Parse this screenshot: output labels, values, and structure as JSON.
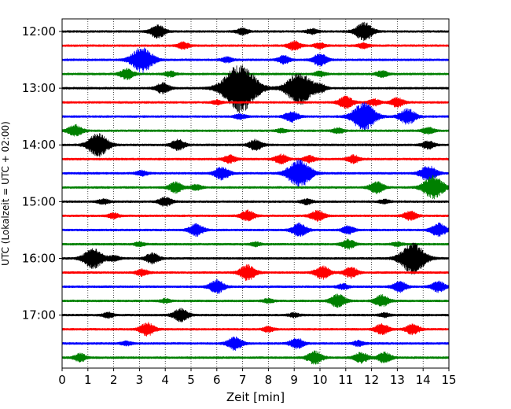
{
  "chart_data": {
    "type": "line",
    "subtype": "helicorder",
    "xlabel": "Zeit  [min]",
    "ylabel": "UTC (Lokalzeit = UTC + 02:00)",
    "xlim": [
      0,
      15
    ],
    "x_ticks": [
      "0",
      "1",
      "2",
      "3",
      "4",
      "5",
      "6",
      "7",
      "8",
      "9",
      "10",
      "11",
      "12",
      "13",
      "14",
      "15"
    ],
    "y_tick_labels": [
      "12:00",
      "13:00",
      "14:00",
      "15:00",
      "16:00",
      "17:00"
    ],
    "grid": "vertical-dotted",
    "trace_colors": [
      "#000000",
      "#ff0000",
      "#0000ff",
      "#008000"
    ],
    "traces": [
      {
        "start": "12:00",
        "color": "#000000",
        "bursts": [
          [
            3.7,
            0.5
          ],
          [
            11.7,
            0.7
          ],
          [
            7.0,
            0.25
          ],
          [
            9.7,
            0.2
          ]
        ]
      },
      {
        "start": "12:15",
        "color": "#ff0000",
        "bursts": [
          [
            4.7,
            0.25
          ],
          [
            9.0,
            0.35
          ],
          [
            11.7,
            0.2
          ],
          [
            10.0,
            0.2
          ]
        ]
      },
      {
        "start": "12:30",
        "color": "#0000ff",
        "bursts": [
          [
            3.1,
            1.0
          ],
          [
            10.0,
            0.45
          ],
          [
            8.6,
            0.3
          ],
          [
            6.4,
            0.2
          ]
        ]
      },
      {
        "start": "12:45",
        "color": "#008000",
        "bursts": [
          [
            2.5,
            0.4
          ],
          [
            12.4,
            0.25
          ],
          [
            4.2,
            0.2
          ],
          [
            10.0,
            0.2
          ]
        ]
      },
      {
        "start": "13:00",
        "color": "#000000",
        "bursts": [
          [
            6.9,
            1.9
          ],
          [
            9.2,
            1.3
          ],
          [
            3.9,
            0.4
          ],
          [
            10.0,
            0.3
          ]
        ]
      },
      {
        "start": "13:15",
        "color": "#ff0000",
        "bursts": [
          [
            11.0,
            0.45
          ],
          [
            13.0,
            0.35
          ],
          [
            12.1,
            0.25
          ],
          [
            6.0,
            0.15
          ]
        ]
      },
      {
        "start": "13:30",
        "color": "#0000ff",
        "bursts": [
          [
            11.7,
            1.1
          ],
          [
            8.9,
            0.4
          ],
          [
            13.4,
            0.6
          ],
          [
            6.9,
            0.2
          ]
        ]
      },
      {
        "start": "13:45",
        "color": "#008000",
        "bursts": [
          [
            0.5,
            0.45
          ],
          [
            14.2,
            0.25
          ],
          [
            10.7,
            0.2
          ],
          [
            8.5,
            0.15
          ]
        ]
      },
      {
        "start": "14:00",
        "color": "#000000",
        "bursts": [
          [
            1.4,
            0.9
          ],
          [
            4.5,
            0.4
          ],
          [
            7.5,
            0.4
          ],
          [
            14.2,
            0.3
          ]
        ]
      },
      {
        "start": "14:15",
        "color": "#ff0000",
        "bursts": [
          [
            6.5,
            0.3
          ],
          [
            8.5,
            0.35
          ],
          [
            11.3,
            0.3
          ],
          [
            9.6,
            0.25
          ]
        ]
      },
      {
        "start": "14:30",
        "color": "#0000ff",
        "bursts": [
          [
            9.2,
            1.1
          ],
          [
            6.2,
            0.5
          ],
          [
            14.2,
            0.6
          ],
          [
            3.1,
            0.2
          ]
        ]
      },
      {
        "start": "14:45",
        "color": "#008000",
        "bursts": [
          [
            14.4,
            0.9
          ],
          [
            12.2,
            0.45
          ],
          [
            4.4,
            0.4
          ],
          [
            5.2,
            0.2
          ]
        ]
      },
      {
        "start": "15:00",
        "color": "#000000",
        "bursts": [
          [
            4.0,
            0.35
          ],
          [
            1.6,
            0.2
          ],
          [
            9.5,
            0.2
          ],
          [
            12.5,
            0.15
          ]
        ]
      },
      {
        "start": "15:15",
        "color": "#ff0000",
        "bursts": [
          [
            7.2,
            0.4
          ],
          [
            9.9,
            0.4
          ],
          [
            13.5,
            0.35
          ],
          [
            2.0,
            0.2
          ]
        ]
      },
      {
        "start": "15:30",
        "color": "#0000ff",
        "bursts": [
          [
            5.2,
            0.45
          ],
          [
            9.2,
            0.5
          ],
          [
            14.6,
            0.5
          ],
          [
            11.1,
            0.3
          ]
        ]
      },
      {
        "start": "15:45",
        "color": "#008000",
        "bursts": [
          [
            11.1,
            0.35
          ],
          [
            7.5,
            0.15
          ],
          [
            3.0,
            0.15
          ],
          [
            13.0,
            0.15
          ]
        ]
      },
      {
        "start": "16:00",
        "color": "#000000",
        "bursts": [
          [
            13.6,
            1.2
          ],
          [
            1.2,
            0.8
          ],
          [
            3.5,
            0.4
          ],
          [
            2.0,
            0.2
          ]
        ]
      },
      {
        "start": "16:15",
        "color": "#ff0000",
        "bursts": [
          [
            10.1,
            0.5
          ],
          [
            7.2,
            0.6
          ],
          [
            11.2,
            0.4
          ],
          [
            3.1,
            0.25
          ]
        ]
      },
      {
        "start": "16:30",
        "color": "#0000ff",
        "bursts": [
          [
            6.0,
            0.5
          ],
          [
            13.1,
            0.4
          ],
          [
            14.6,
            0.4
          ],
          [
            10.9,
            0.2
          ]
        ]
      },
      {
        "start": "16:45",
        "color": "#008000",
        "bursts": [
          [
            10.7,
            0.5
          ],
          [
            12.4,
            0.45
          ],
          [
            4.0,
            0.15
          ],
          [
            8.0,
            0.15
          ]
        ]
      },
      {
        "start": "17:00",
        "color": "#000000",
        "bursts": [
          [
            4.6,
            0.5
          ],
          [
            1.8,
            0.2
          ],
          [
            9.0,
            0.15
          ],
          [
            12.5,
            0.15
          ]
        ]
      },
      {
        "start": "17:15",
        "color": "#ff0000",
        "bursts": [
          [
            3.3,
            0.5
          ],
          [
            12.4,
            0.4
          ],
          [
            13.6,
            0.4
          ],
          [
            8.0,
            0.2
          ]
        ]
      },
      {
        "start": "17:30",
        "color": "#0000ff",
        "bursts": [
          [
            6.7,
            0.5
          ],
          [
            9.1,
            0.4
          ],
          [
            11.5,
            0.2
          ],
          [
            2.5,
            0.15
          ]
        ]
      },
      {
        "start": "17:45",
        "color": "#008000",
        "bursts": [
          [
            9.8,
            0.5
          ],
          [
            11.6,
            0.4
          ],
          [
            12.5,
            0.4
          ],
          [
            0.7,
            0.3
          ]
        ]
      }
    ]
  }
}
